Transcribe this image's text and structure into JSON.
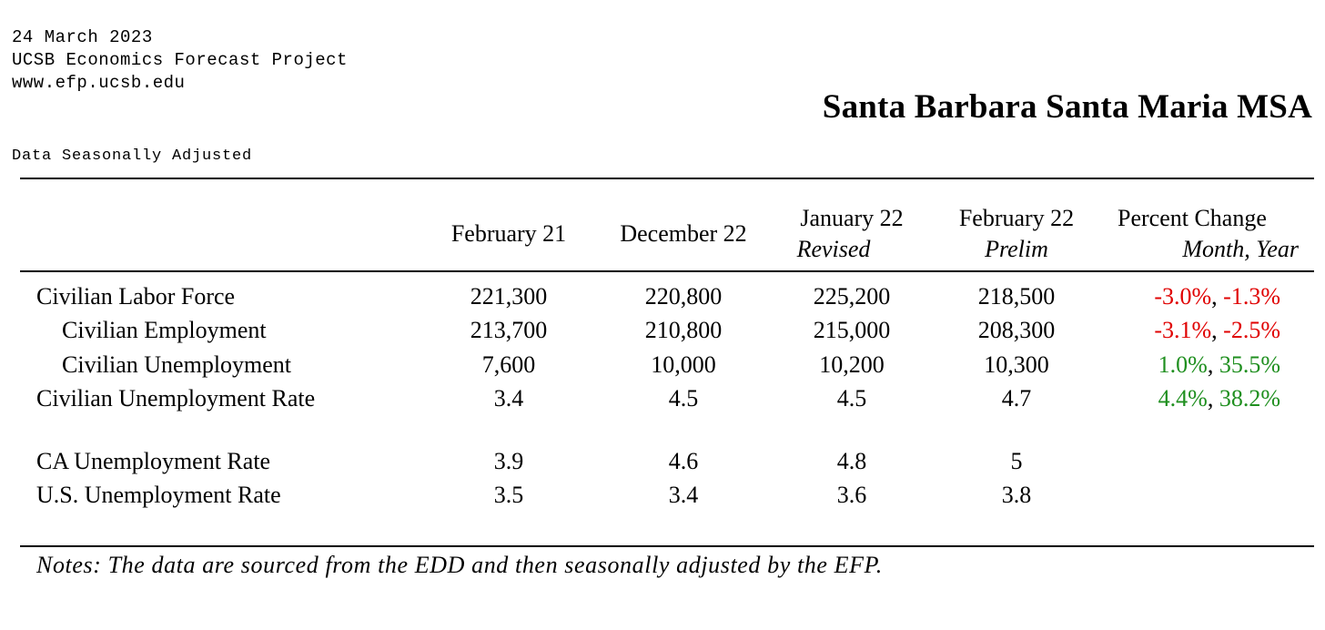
{
  "header": {
    "date": "24 March 2023",
    "organization": "UCSB Economics Forecast Project",
    "website": "www.efp.ucsb.edu",
    "region": "Santa Barbara Santa Maria MSA",
    "adjustment_note": "Data Seasonally Adjusted"
  },
  "table": {
    "columns": [
      {
        "label": "February 21",
        "sublabel": ""
      },
      {
        "label": "December 22",
        "sublabel": ""
      },
      {
        "label": "January 22",
        "sublabel": "Revised"
      },
      {
        "label": "February 22",
        "sublabel": "Prelim"
      },
      {
        "label": "Percent Change",
        "sublabel": "Month, Year"
      }
    ],
    "rows": [
      {
        "label": "Civilian Labor Force",
        "values": [
          "221,300",
          "220,800",
          "225,200",
          "218,500"
        ],
        "change_month": "-3.0%",
        "change_year": "-1.3%"
      },
      {
        "label": "Civilian Employment",
        "values": [
          "213,700",
          "210,800",
          "215,000",
          "208,300"
        ],
        "change_month": "-3.1%",
        "change_year": "-2.5%"
      },
      {
        "label": "Civilian Unemployment",
        "values": [
          "7,600",
          "10,000",
          "10,200",
          "10,300"
        ],
        "change_month": "1.0%",
        "change_year": "35.5%"
      },
      {
        "label": "Civilian Unemployment Rate",
        "values": [
          "3.4",
          "4.5",
          "4.5",
          "4.7"
        ],
        "change_month": "4.4%",
        "change_year": "38.2%"
      },
      {
        "label": "CA Unemployment Rate",
        "values": [
          "3.9",
          "4.6",
          "4.8",
          "5"
        ],
        "change_month": "",
        "change_year": ""
      },
      {
        "label": "U.S. Unemployment Rate",
        "values": [
          "3.5",
          "3.4",
          "3.6",
          "3.8"
        ],
        "change_month": "",
        "change_year": ""
      }
    ],
    "separator": ", "
  },
  "notes": "Notes: The data are sourced from the EDD and then seasonally adjusted by the EFP.",
  "colors": {
    "negative": "#e00000",
    "positive": "#1f8f1f"
  }
}
